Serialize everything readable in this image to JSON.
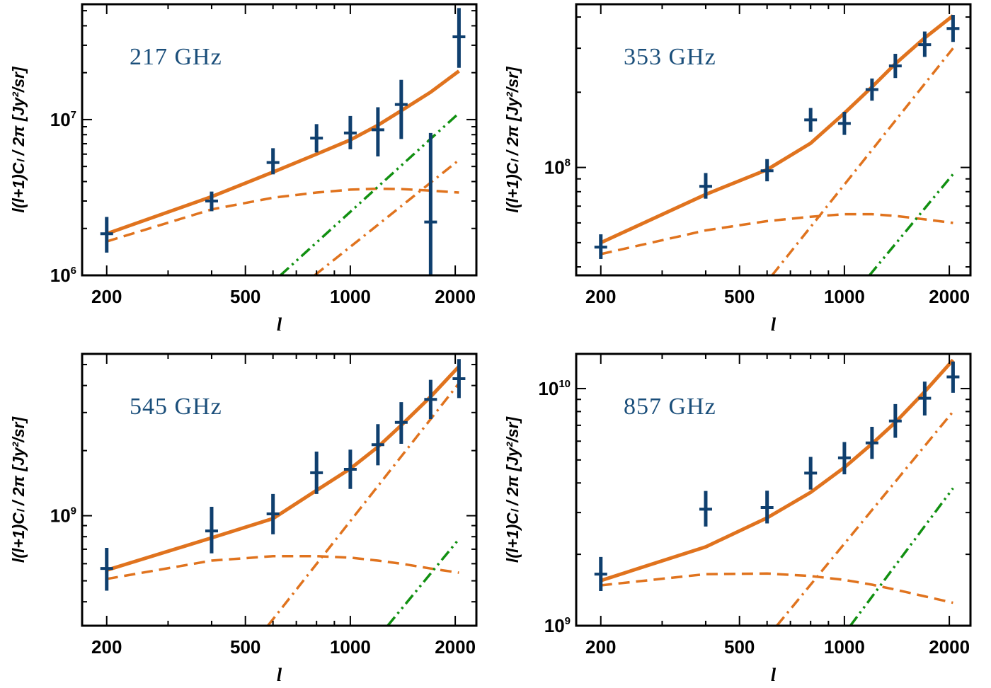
{
  "figure": {
    "ylabel": "l(l+1)C_l / 2π  [Jy²/sr]",
    "ylabel_display": "l(l+1)Cₗ / 2π  [Jy²/sr]",
    "xlabel": "l"
  },
  "colors": {
    "data_points": "#0f3f6e",
    "total_model": "#e0731e",
    "dashed_component": "#e0731e",
    "dash_dot_component": "#e0731e",
    "dash_dot_dot_component": "#119011",
    "title_text": "#1a4e7a",
    "axes": "#000000"
  },
  "chart_data": [
    {
      "type": "scatter",
      "title": "217 GHz",
      "xlabel": "l",
      "ylabel": "l(l+1)C_l / 2π  [Jy²/sr]",
      "xscale": "log",
      "yscale": "log",
      "xlim": [
        170,
        2300
      ],
      "ylim": [
        1000000,
        55000000
      ],
      "xticks": [
        200,
        500,
        1000,
        2000
      ],
      "yticks": [
        {
          "value": 1000000,
          "base": "10",
          "exp": "6"
        },
        {
          "value": 10000000,
          "base": "10",
          "exp": "7"
        }
      ],
      "data_points": {
        "x": [
          200,
          400,
          600,
          800,
          1000,
          1200,
          1400,
          1700,
          2050
        ],
        "y": [
          1850000,
          3000000,
          5300000,
          7600000,
          8200000,
          8600000,
          12500000,
          2200000,
          34000000
        ],
        "yerr_low": [
          450000,
          420000,
          850000,
          1450000,
          1750000,
          2800000,
          5000000,
          1200000,
          12500000
        ],
        "yerr_high": [
          520000,
          450000,
          1250000,
          1750000,
          2350000,
          3400000,
          5500000,
          6000000,
          18000000
        ]
      },
      "series": [
        {
          "style": "solid",
          "x": [
            200,
            400,
            600,
            800,
            1000,
            1200,
            1400,
            1700,
            2050
          ],
          "y": [
            1850000,
            3200000,
            4600000,
            6000000,
            7400000,
            9200000,
            11400000,
            15000000,
            20500000
          ]
        },
        {
          "style": "dashed",
          "x": [
            200,
            400,
            600,
            800,
            1000,
            1200,
            1400,
            1700,
            2050
          ],
          "y": [
            1650000,
            2650000,
            3150000,
            3400000,
            3550000,
            3600000,
            3580000,
            3500000,
            3400000
          ]
        },
        {
          "style": "dash-dot",
          "x": [
            790,
            2050
          ],
          "y": [
            1000000,
            5500000
          ]
        },
        {
          "style": "dash-dot-dot",
          "x": [
            630,
            2050
          ],
          "y": [
            1000000,
            11000000
          ]
        }
      ]
    },
    {
      "type": "scatter",
      "title": "353 GHz",
      "xlabel": "l",
      "ylabel": "l(l+1)C_l / 2π  [Jy²/sr]",
      "xscale": "log",
      "yscale": "log",
      "xlim": [
        170,
        2300
      ],
      "ylim": [
        37000000,
        450000000
      ],
      "xticks": [
        200,
        500,
        1000,
        2000
      ],
      "yticks": [
        {
          "value": 100000000,
          "base": "10",
          "exp": "8"
        }
      ],
      "data_points": {
        "x": [
          200,
          400,
          600,
          800,
          1000,
          1200,
          1400,
          1700,
          2050
        ],
        "y": [
          48000000,
          84000000,
          97000000,
          155000000,
          150000000,
          205000000,
          255000000,
          310000000,
          360000000
        ],
        "yerr_low": [
          5000000,
          9000000,
          9000000,
          16000000,
          15000000,
          20000000,
          27000000,
          33000000,
          42000000
        ],
        "yerr_high": [
          6000000,
          11000000,
          11000000,
          18000000,
          17000000,
          22000000,
          30000000,
          40000000,
          48000000
        ]
      },
      "series": [
        {
          "style": "solid",
          "x": [
            200,
            400,
            600,
            800,
            1000,
            1200,
            1400,
            1700,
            2050
          ],
          "y": [
            50000000,
            78000000,
            98000000,
            125000000,
            165000000,
            210000000,
            260000000,
            330000000,
            405000000
          ]
        },
        {
          "style": "dashed",
          "x": [
            200,
            400,
            600,
            800,
            1000,
            1200,
            1400,
            1700,
            2050
          ],
          "y": [
            45000000,
            56000000,
            61000000,
            63500000,
            65000000,
            65000000,
            64000000,
            62000000,
            60000000
          ]
        },
        {
          "style": "dash-dot",
          "x": [
            620,
            2050
          ],
          "y": [
            37000000,
            300000000
          ]
        },
        {
          "style": "dash-dot-dot",
          "x": [
            1180,
            2050
          ],
          "y": [
            37000000,
            94000000
          ]
        }
      ]
    },
    {
      "type": "scatter",
      "title": "545 GHz",
      "xlabel": "l",
      "ylabel": "l(l+1)C_l / 2π  [Jy²/sr]",
      "xscale": "log",
      "yscale": "log",
      "xlim": [
        170,
        2300
      ],
      "ylim": [
        310000000,
        5600000000
      ],
      "xticks": [
        200,
        500,
        1000,
        2000
      ],
      "yticks": [
        {
          "value": 1000000000,
          "base": "10",
          "exp": "9"
        }
      ],
      "data_points": {
        "x": [
          200,
          400,
          600,
          800,
          1000,
          1200,
          1400,
          1700,
          2050
        ],
        "y": [
          570000000,
          850000000,
          1020000000,
          1580000000,
          1640000000,
          2130000000,
          2700000000,
          3450000000,
          4300000000
        ],
        "yerr_low": [
          120000000,
          180000000,
          200000000,
          320000000,
          310000000,
          420000000,
          550000000,
          650000000,
          800000000
        ],
        "yerr_high": [
          140000000,
          250000000,
          240000000,
          400000000,
          380000000,
          520000000,
          650000000,
          800000000,
          1000000000
        ]
      },
      "series": [
        {
          "style": "solid",
          "x": [
            200,
            400,
            600,
            800,
            1000,
            1200,
            1400,
            1700,
            2050
          ],
          "y": [
            560000000,
            790000000,
            970000000,
            1310000000,
            1650000000,
            2080000000,
            2620000000,
            3550000000,
            4900000000
          ]
        },
        {
          "style": "dashed",
          "x": [
            200,
            400,
            600,
            800,
            1000,
            1200,
            1400,
            1700,
            2050
          ],
          "y": [
            510000000,
            620000000,
            650000000,
            650000000,
            640000000,
            620000000,
            600000000,
            570000000,
            545000000
          ]
        },
        {
          "style": "dash-dot",
          "x": [
            580,
            2050
          ],
          "y": [
            310000000,
            4100000000
          ]
        },
        {
          "style": "dash-dot-dot",
          "x": [
            1280,
            2050
          ],
          "y": [
            310000000,
            780000000
          ]
        }
      ]
    },
    {
      "type": "scatter",
      "title": "857 GHz",
      "xlabel": "l",
      "ylabel": "l(l+1)C_l / 2π  [Jy²/sr]",
      "xscale": "log",
      "yscale": "log",
      "xlim": [
        170,
        2300
      ],
      "ylim": [
        1000000000,
        14000000000
      ],
      "xticks": [
        200,
        500,
        1000,
        2000
      ],
      "yticks": [
        {
          "value": 1000000000,
          "base": "10",
          "exp": "9"
        },
        {
          "value": 10000000000,
          "base": "10",
          "exp": "10"
        }
      ],
      "data_points": {
        "x": [
          200,
          400,
          600,
          800,
          1000,
          1200,
          1400,
          1700,
          2050
        ],
        "y": [
          1650000000,
          3100000000,
          3150000000,
          4400000000,
          5100000000,
          5900000000,
          7300000000,
          9100000000,
          11200000000
        ],
        "yerr_low": [
          250000000,
          480000000,
          450000000,
          650000000,
          750000000,
          850000000,
          1100000000,
          1400000000,
          1600000000
        ],
        "yerr_high": [
          300000000,
          600000000,
          560000000,
          750000000,
          850000000,
          1000000000,
          1300000000,
          1600000000,
          1800000000
        ]
      },
      "series": [
        {
          "style": "solid",
          "x": [
            200,
            400,
            600,
            800,
            1000,
            1200,
            1400,
            1700,
            2050
          ],
          "y": [
            1550000000,
            2150000000,
            2850000000,
            3650000000,
            4650000000,
            5850000000,
            7200000000,
            9700000000,
            13200000000
          ]
        },
        {
          "style": "dashed",
          "x": [
            200,
            400,
            600,
            800,
            1000,
            1200,
            1400,
            1700,
            2050
          ],
          "y": [
            1480000000,
            1650000000,
            1660000000,
            1620000000,
            1560000000,
            1490000000,
            1420000000,
            1330000000,
            1250000000
          ]
        },
        {
          "style": "dash-dot",
          "x": [
            640,
            2050
          ],
          "y": [
            1000000000,
            8000000000
          ]
        },
        {
          "style": "dash-dot-dot",
          "x": [
            1040,
            2050
          ],
          "y": [
            1000000000,
            3800000000
          ]
        }
      ]
    }
  ]
}
